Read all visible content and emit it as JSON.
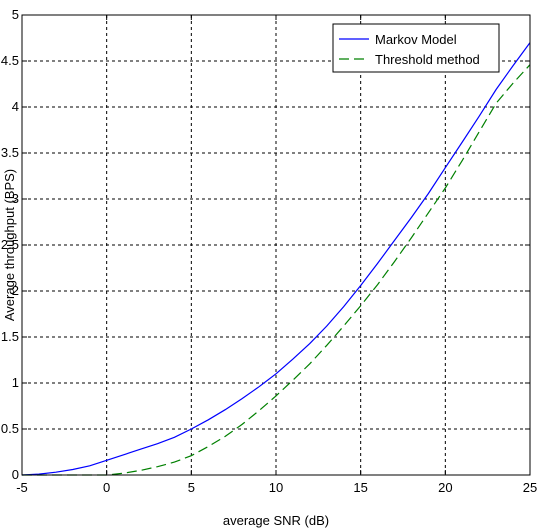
{
  "chart_data": {
    "type": "line",
    "title": "",
    "xlabel": "average SNR (dB)",
    "ylabel": "Average throughput (BPS)",
    "xlim": [
      -5,
      25
    ],
    "ylim": [
      0,
      5
    ],
    "xticks": [
      -5,
      0,
      5,
      10,
      15,
      20,
      25
    ],
    "yticks": [
      0,
      0.5,
      1,
      1.5,
      2,
      2.5,
      3,
      3.5,
      4,
      4.5,
      5
    ],
    "ytick_labels": [
      "0",
      "0.5",
      "1",
      "1.5",
      "2",
      "2.5",
      "3",
      "3.5",
      "4",
      "4.5",
      "5"
    ],
    "grid": true,
    "grid_style": "dashed",
    "legend_position": "top-right",
    "series": [
      {
        "name": "Markov Model",
        "color": "#0000ff",
        "line_style": "solid",
        "x": [
          -5,
          -4,
          -3,
          -2,
          -1,
          0,
          1,
          2,
          3,
          4,
          5,
          6,
          7,
          8,
          9,
          10,
          11,
          12,
          13,
          14,
          15,
          16,
          17,
          18,
          19,
          20,
          21,
          22,
          23,
          24,
          25
        ],
        "y": [
          0.0,
          0.01,
          0.03,
          0.06,
          0.1,
          0.16,
          0.22,
          0.28,
          0.34,
          0.41,
          0.5,
          0.6,
          0.71,
          0.83,
          0.96,
          1.1,
          1.26,
          1.43,
          1.62,
          1.83,
          2.06,
          2.3,
          2.55,
          2.8,
          3.06,
          3.34,
          3.62,
          3.9,
          4.19,
          4.45,
          4.7
        ]
      },
      {
        "name": "Threshold method",
        "color": "#008000",
        "line_style": "dashed",
        "x": [
          -5,
          -4,
          -3,
          -2,
          -1,
          0,
          1,
          2,
          3,
          4,
          5,
          6,
          7,
          8,
          9,
          10,
          11,
          12,
          13,
          14,
          15,
          16,
          17,
          18,
          19,
          20,
          21,
          22,
          23,
          24,
          25
        ],
        "y": [
          0.0,
          0.0,
          0.0,
          0.0,
          0.0,
          0.0,
          0.02,
          0.05,
          0.09,
          0.14,
          0.21,
          0.31,
          0.42,
          0.55,
          0.7,
          0.86,
          1.03,
          1.21,
          1.41,
          1.62,
          1.84,
          2.07,
          2.32,
          2.58,
          2.85,
          3.12,
          3.42,
          3.73,
          4.04,
          4.26,
          4.46
        ]
      }
    ]
  }
}
